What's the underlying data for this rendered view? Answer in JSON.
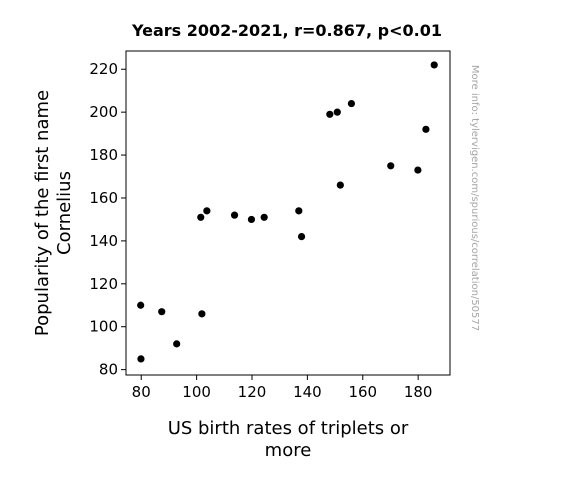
{
  "chart_data": {
    "type": "scatter",
    "title": "Years 2002-2021, r=0.867, p<0.01",
    "xlabel_lines": [
      "US birth rates of triplets or",
      "more"
    ],
    "ylabel_lines": [
      "Popularity of the first name",
      "Cornelius"
    ],
    "side_note": "More info: tylervigen.com/spurious/correlation/50577",
    "xlim": [
      74.5,
      191.5
    ],
    "ylim": [
      77.5,
      228.5
    ],
    "x_ticks": [
      80,
      100,
      120,
      140,
      160,
      180
    ],
    "y_ticks": [
      80,
      100,
      120,
      140,
      160,
      180,
      200,
      220
    ],
    "grid": false,
    "marker_color": "#000000",
    "points": [
      {
        "x": 79.8,
        "y": 110
      },
      {
        "x": 79.9,
        "y": 85
      },
      {
        "x": 87.4,
        "y": 107
      },
      {
        "x": 92.8,
        "y": 92
      },
      {
        "x": 101.5,
        "y": 151
      },
      {
        "x": 101.9,
        "y": 106
      },
      {
        "x": 103.7,
        "y": 154
      },
      {
        "x": 113.7,
        "y": 152
      },
      {
        "x": 119.8,
        "y": 150
      },
      {
        "x": 124.4,
        "y": 151
      },
      {
        "x": 136.9,
        "y": 154
      },
      {
        "x": 137.9,
        "y": 142
      },
      {
        "x": 148.1,
        "y": 199
      },
      {
        "x": 150.8,
        "y": 200
      },
      {
        "x": 151.9,
        "y": 166
      },
      {
        "x": 155.9,
        "y": 204
      },
      {
        "x": 170.1,
        "y": 175
      },
      {
        "x": 179.9,
        "y": 173
      },
      {
        "x": 182.8,
        "y": 192
      },
      {
        "x": 185.8,
        "y": 222
      }
    ]
  }
}
